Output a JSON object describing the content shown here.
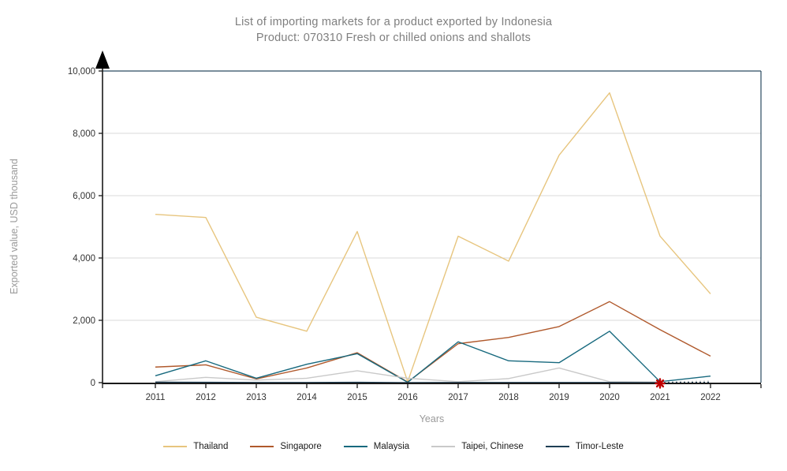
{
  "header": {
    "title_line1": "List of importing markets for a product exported by Indonesia",
    "title_line2": "Product: 070310 Fresh or chilled onions and shallots"
  },
  "axes": {
    "y_label": "Exported value, USD thousand",
    "x_label": "Years"
  },
  "colors": {
    "grid": "#d9d9d9",
    "axis": "#1a1a1a",
    "plot_border": "#2a4a60",
    "title_text": "#7f7f7f",
    "muted_text": "#9a9a9a",
    "tick_text": "#333333",
    "star": "#c00000"
  },
  "chart_data": {
    "type": "line",
    "title": "List of importing markets for a product exported by Indonesia — Product: 070310 Fresh or chilled onions and shallots",
    "xlabel": "Years",
    "ylabel": "Exported value, USD thousand",
    "grid": true,
    "legend_position": "bottom",
    "ylim": [
      0,
      10000
    ],
    "y_ticks": [
      0,
      2000,
      4000,
      6000,
      8000,
      10000
    ],
    "y_tick_labels": [
      "0",
      "2,000",
      "4,000",
      "6,000",
      "8,000",
      "10,000"
    ],
    "categories": [
      "2011",
      "2012",
      "2013",
      "2014",
      "2015",
      "2016",
      "2017",
      "2018",
      "2019",
      "2020",
      "2021",
      "2022"
    ],
    "series": [
      {
        "name": "Thailand",
        "color": "#e7c57e",
        "values": [
          5400,
          5300,
          2100,
          1650,
          4850,
          30,
          4700,
          3900,
          7300,
          9300,
          4700,
          2850
        ]
      },
      {
        "name": "Singapore",
        "color": "#b0592c",
        "values": [
          500,
          570,
          120,
          470,
          960,
          20,
          1250,
          1450,
          1800,
          2600,
          1700,
          850
        ]
      },
      {
        "name": "Malaysia",
        "color": "#17697e",
        "values": [
          220,
          700,
          140,
          590,
          930,
          10,
          1310,
          700,
          640,
          1650,
          30,
          210
        ]
      },
      {
        "name": "Taipei, Chinese",
        "color": "#c9c9c9",
        "values": [
          30,
          170,
          80,
          140,
          380,
          140,
          30,
          130,
          470,
          30,
          20,
          50
        ],
        "dashed_from_index": 10
      },
      {
        "name": "Timor-Leste",
        "color": "#1e3e54",
        "values": [
          15,
          10,
          5,
          5,
          10,
          0,
          5,
          5,
          5,
          5,
          0,
          10
        ],
        "dashed_from_index": 10
      }
    ],
    "annotations": {
      "star_marker": {
        "category": "2021",
        "value": 0,
        "symbol": "asterisk",
        "color": "#c00000"
      },
      "y_axis_arrow": "filled black triangle at top of y-axis"
    }
  }
}
